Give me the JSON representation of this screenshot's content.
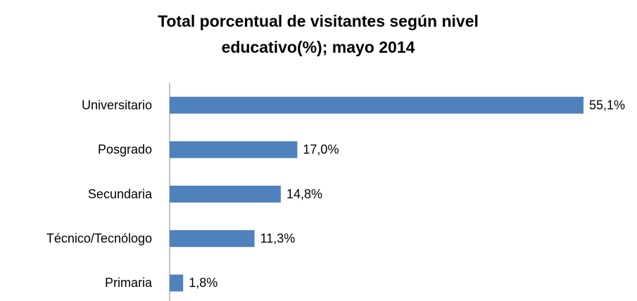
{
  "chart_data": {
    "type": "bar",
    "orientation": "horizontal",
    "title": "Total porcentual de visitantes según nivel educativo(%); mayo 2014",
    "categories": [
      "Universitario",
      "Posgrado",
      "Secundaria",
      "Técnico/Tecnólogo",
      "Primaria"
    ],
    "values": [
      55.1,
      17.0,
      14.8,
      11.3,
      1.8
    ],
    "value_labels": [
      "55,1%",
      "17,0%",
      "14,8%",
      "11,3%",
      "1,8%"
    ],
    "color": "#4f81bd"
  }
}
